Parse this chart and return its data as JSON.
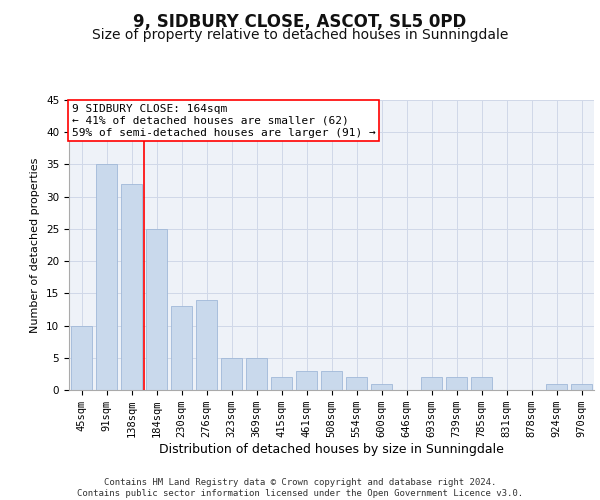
{
  "title": "9, SIDBURY CLOSE, ASCOT, SL5 0PD",
  "subtitle": "Size of property relative to detached houses in Sunningdale",
  "xlabel": "Distribution of detached houses by size in Sunningdale",
  "ylabel": "Number of detached properties",
  "categories": [
    "45sqm",
    "91sqm",
    "138sqm",
    "184sqm",
    "230sqm",
    "276sqm",
    "323sqm",
    "369sqm",
    "415sqm",
    "461sqm",
    "508sqm",
    "554sqm",
    "600sqm",
    "646sqm",
    "693sqm",
    "739sqm",
    "785sqm",
    "831sqm",
    "878sqm",
    "924sqm",
    "970sqm"
  ],
  "values": [
    10,
    35,
    32,
    25,
    13,
    14,
    5,
    5,
    2,
    3,
    3,
    2,
    1,
    0,
    2,
    2,
    2,
    0,
    0,
    1,
    1
  ],
  "bar_color": "#c9d9ec",
  "bar_edge_color": "#a0b8d8",
  "grid_color": "#d0d8e8",
  "background_color": "#eef2f8",
  "vline_color": "red",
  "annotation_text": "9 SIDBURY CLOSE: 164sqm\n← 41% of detached houses are smaller (62)\n59% of semi-detached houses are larger (91) →",
  "ylim": [
    0,
    45
  ],
  "yticks": [
    0,
    5,
    10,
    15,
    20,
    25,
    30,
    35,
    40,
    45
  ],
  "footer": "Contains HM Land Registry data © Crown copyright and database right 2024.\nContains public sector information licensed under the Open Government Licence v3.0.",
  "title_fontsize": 12,
  "subtitle_fontsize": 10,
  "xlabel_fontsize": 9,
  "ylabel_fontsize": 8,
  "tick_fontsize": 7.5,
  "annotation_fontsize": 8,
  "footer_fontsize": 6.5
}
